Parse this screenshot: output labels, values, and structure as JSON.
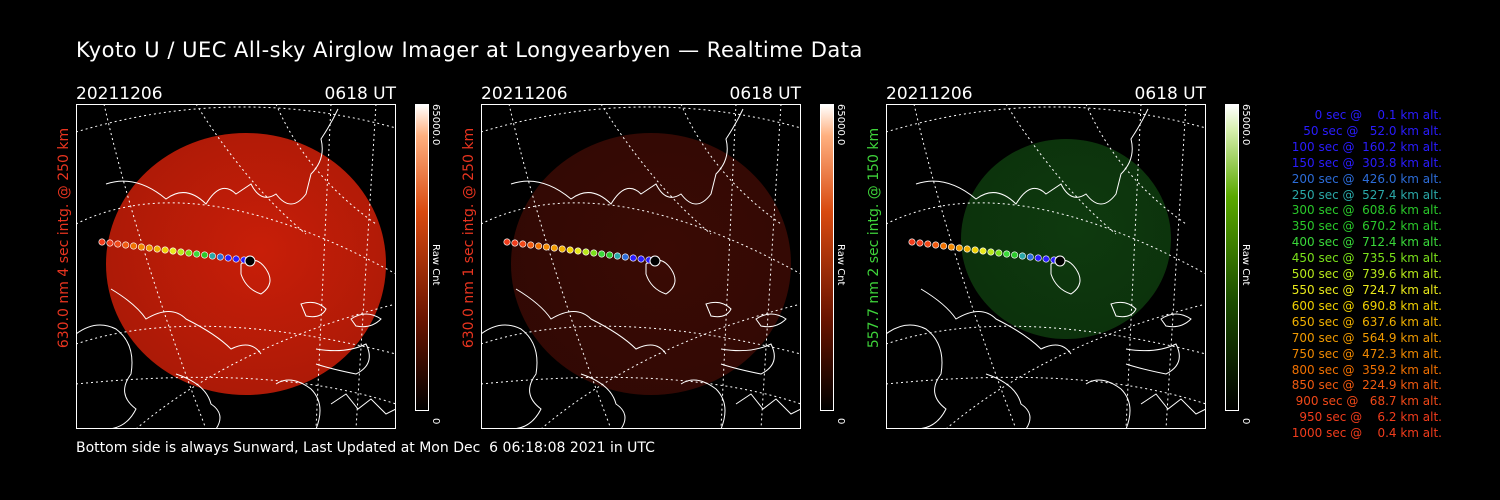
{
  "title": "Kyoto U / UEC All-sky Airglow Imager at Longyearbyen — Realtime Data",
  "footer": "Bottom side is always Sunward, Last Updated at Mon Dec  6 06:18:08 2021 in UTC",
  "panels": [
    {
      "date": "20211206",
      "time": "0618 UT",
      "ylabel": "630.0 nm 4 sec intg. @ 250 km",
      "label_color": "#e8341f",
      "cbar_max": "65000.0",
      "cbar_min": "0",
      "cbar_label": "Raw Cnt",
      "image_color": "#c81e08",
      "image_opacity": "1"
    },
    {
      "date": "20211206",
      "time": "0618 UT",
      "ylabel": "630.0 nm 1 sec intg. @ 250 km",
      "label_color": "#e8341f",
      "cbar_max": "65000.0",
      "cbar_min": "0",
      "cbar_label": "Raw Cnt",
      "image_color": "#3a0a04",
      "image_opacity": "1"
    },
    {
      "date": "20211206",
      "time": "0618 UT",
      "ylabel": "557.7 nm 2 sec intg. @ 150 km",
      "label_color": "#3ed23a",
      "cbar_max": "65000.0",
      "cbar_min": "0",
      "cbar_label": "Raw Cnt",
      "image_color": "#0e3a0e",
      "image_opacity": "1"
    }
  ],
  "legend": [
    {
      "text": "   0 sec @    0.1 km alt.",
      "color": "#2a1cff"
    },
    {
      "text": "  50 sec @   52.0 km alt.",
      "color": "#2a1cff"
    },
    {
      "text": " 100 sec @  160.2 km alt.",
      "color": "#2a1cff"
    },
    {
      "text": " 150 sec @  303.8 km alt.",
      "color": "#2a1cff"
    },
    {
      "text": " 200 sec @  426.0 km alt.",
      "color": "#2c6cd8"
    },
    {
      "text": " 250 sec @  527.4 km alt.",
      "color": "#2aa8a8"
    },
    {
      "text": " 300 sec @  608.6 km alt.",
      "color": "#2ac82a"
    },
    {
      "text": " 350 sec @  670.2 km alt.",
      "color": "#2ac82a"
    },
    {
      "text": " 400 sec @  712.4 km alt.",
      "color": "#3ad83a"
    },
    {
      "text": " 450 sec @  735.5 km alt.",
      "color": "#7ae01a"
    },
    {
      "text": " 500 sec @  739.6 km alt.",
      "color": "#b8e81a"
    },
    {
      "text": " 550 sec @  724.7 km alt.",
      "color": "#e8e81a"
    },
    {
      "text": " 600 sec @  690.8 km alt.",
      "color": "#f0d000"
    },
    {
      "text": " 650 sec @  637.6 km alt.",
      "color": "#f0b000"
    },
    {
      "text": " 700 sec @  564.9 km alt.",
      "color": "#f09a00"
    },
    {
      "text": " 750 sec @  472.3 km alt.",
      "color": "#f08800"
    },
    {
      "text": " 800 sec @  359.2 km alt.",
      "color": "#f07000"
    },
    {
      "text": " 850 sec @  224.9 km alt.",
      "color": "#f05a10"
    },
    {
      "text": " 900 sec @   68.7 km alt.",
      "color": "#f04818"
    },
    {
      "text": " 950 sec @    6.2 km alt.",
      "color": "#f03c1c"
    },
    {
      "text": "1000 sec @    0.4 km alt.",
      "color": "#f03c1c"
    }
  ]
}
